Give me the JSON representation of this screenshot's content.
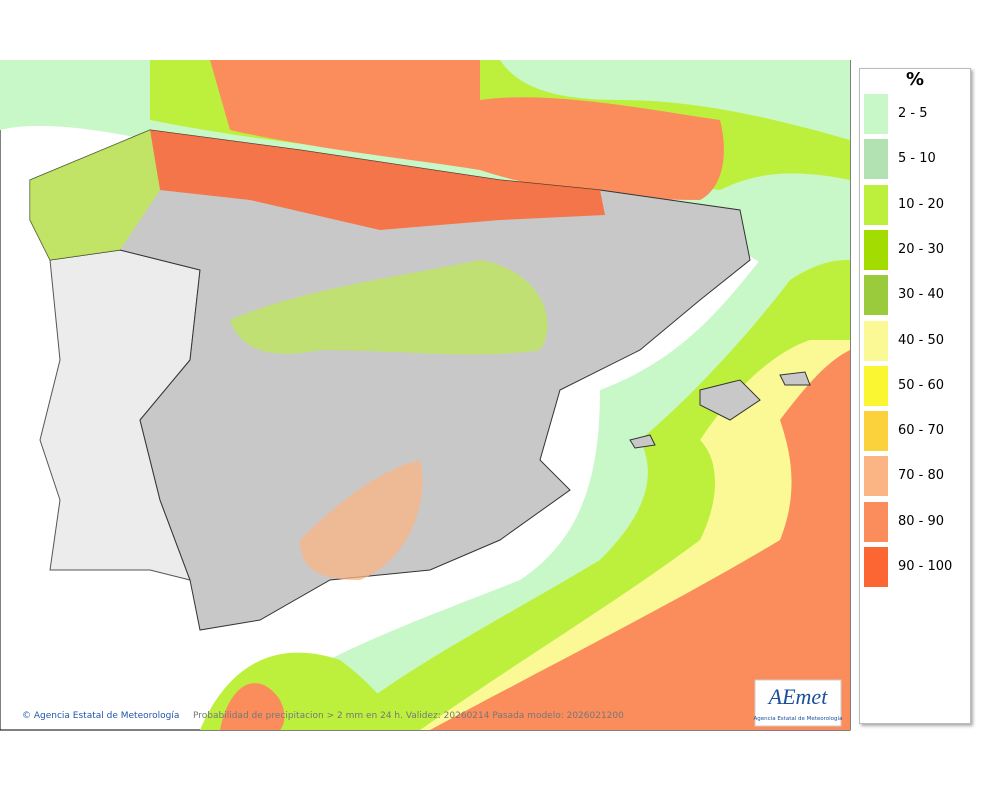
{
  "legend": {
    "title": "%",
    "items": [
      {
        "label": "2 - 5",
        "color": "#c8f7c8"
      },
      {
        "label": "5 - 10",
        "color": "#b2e2b2"
      },
      {
        "label": "10 - 20",
        "color": "#bdf03c"
      },
      {
        "label": "20 - 30",
        "color": "#a3dc00"
      },
      {
        "label": "30 - 40",
        "color": "#9acb3c"
      },
      {
        "label": "40 - 50",
        "color": "#fbf996"
      },
      {
        "label": "50 - 60",
        "color": "#fbf632"
      },
      {
        "label": "60 - 70",
        "color": "#fbd23c"
      },
      {
        "label": "70 - 80",
        "color": "#fbb484"
      },
      {
        "label": "80 - 90",
        "color": "#fb8c5c"
      },
      {
        "label": "90 - 100",
        "color": "#fb6632"
      }
    ]
  },
  "footer": {
    "credit": "Agencia Estatal de Meteorología",
    "caption": "Probabilidad de precipitacion > 2 mm en 24 h. Validez: 20260214 Pasada modelo: 2026021200"
  },
  "logo": {
    "name": "AEmet",
    "subtitle": "Agencia Estatal de Meteorología"
  }
}
